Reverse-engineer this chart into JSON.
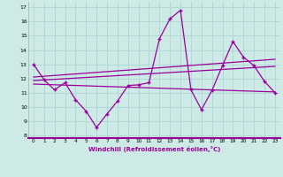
{
  "xlabel": "Windchill (Refroidissement éolien,°C)",
  "background_color": "#ceeae7",
  "grid_color": "#b0d8d4",
  "line_color": "#990099",
  "xlim": [
    -0.5,
    23.5
  ],
  "ylim": [
    7.8,
    17.4
  ],
  "yticks": [
    8,
    9,
    10,
    11,
    12,
    13,
    14,
    15,
    16,
    17
  ],
  "xticks": [
    0,
    1,
    2,
    3,
    4,
    5,
    6,
    7,
    8,
    9,
    10,
    11,
    12,
    13,
    14,
    15,
    16,
    17,
    18,
    19,
    20,
    21,
    22,
    23
  ],
  "main_data_x": [
    0,
    1,
    2,
    3,
    4,
    5,
    6,
    7,
    8,
    9,
    10,
    11,
    12,
    13,
    14,
    15,
    16,
    17,
    18,
    19,
    20,
    21,
    22,
    23
  ],
  "main_data_y": [
    13.0,
    11.9,
    11.2,
    11.7,
    10.5,
    9.7,
    8.55,
    9.5,
    10.4,
    11.5,
    11.55,
    11.7,
    14.8,
    16.2,
    16.8,
    11.2,
    9.8,
    11.15,
    12.9,
    14.6,
    13.5,
    12.9,
    11.8,
    11.0
  ],
  "trend1_x": [
    0,
    23
  ],
  "trend1_y": [
    11.85,
    12.85
  ],
  "trend2_x": [
    0,
    23
  ],
  "trend2_y": [
    12.1,
    13.35
  ],
  "trend3_x": [
    0,
    23
  ],
  "trend3_y": [
    11.6,
    11.05
  ]
}
